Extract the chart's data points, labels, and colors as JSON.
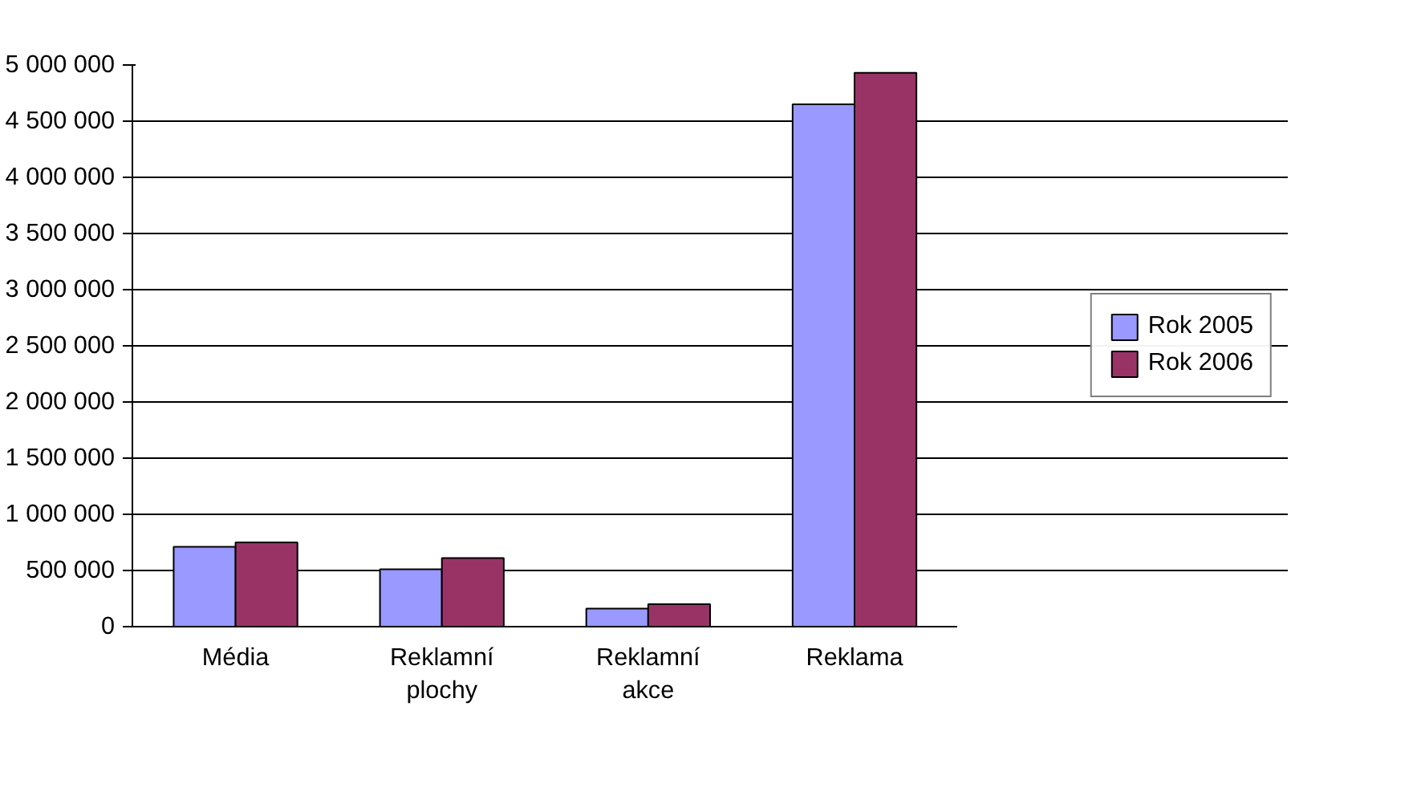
{
  "chart_data": {
    "type": "bar",
    "categories": [
      "Média",
      "Reklamní\nplochy",
      "Reklamní\nakce",
      "Reklama"
    ],
    "series": [
      {
        "name": "Rok 2005",
        "color": "#9999ff",
        "values": [
          710000,
          510000,
          160000,
          4650000
        ]
      },
      {
        "name": "Rok 2006",
        "color": "#993366",
        "values": [
          750000,
          610000,
          200000,
          4930000
        ]
      }
    ],
    "ylim": [
      0,
      5000000
    ],
    "yticks": [
      {
        "value": 0,
        "label": "0"
      },
      {
        "value": 500000,
        "label": "500 000"
      },
      {
        "value": 1000000,
        "label": "1 000 000"
      },
      {
        "value": 1500000,
        "label": "1 500 000"
      },
      {
        "value": 2000000,
        "label": "2 000 000"
      },
      {
        "value": 2500000,
        "label": "2 500 000"
      },
      {
        "value": 3000000,
        "label": "3 000 000"
      },
      {
        "value": 3500000,
        "label": "3 500 000"
      },
      {
        "value": 4000000,
        "label": "4 000 000"
      },
      {
        "value": 4500000,
        "label": "4 500 000"
      },
      {
        "value": 5000000,
        "label": "5 000 000"
      }
    ],
    "grid": "y",
    "legend": "right"
  }
}
